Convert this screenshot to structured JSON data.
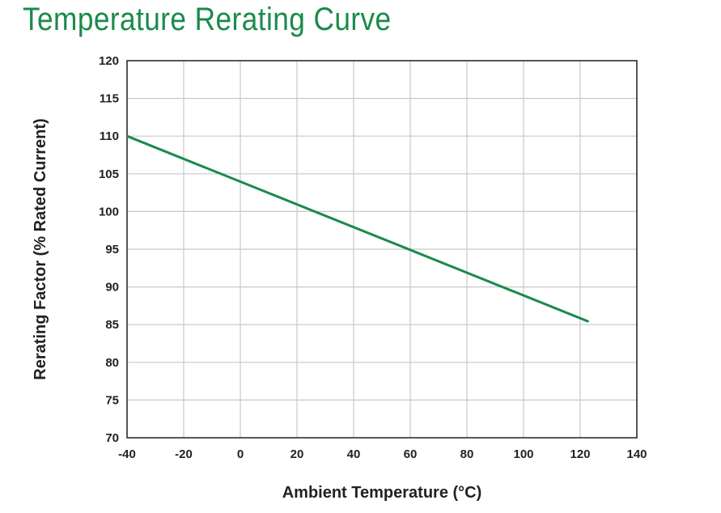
{
  "chart_data": {
    "type": "line",
    "title": "Temperature Rerating Curve",
    "xlabel": "Ambient Temperature (°C)",
    "ylabel": "Rerating Factor (% Rated Current)",
    "xlim": [
      -40,
      140
    ],
    "ylim": [
      70,
      120
    ],
    "x_ticks": [
      -40,
      -20,
      0,
      20,
      40,
      60,
      80,
      100,
      120,
      140
    ],
    "y_ticks": [
      70,
      75,
      80,
      85,
      90,
      95,
      100,
      105,
      110,
      115,
      120
    ],
    "grid": true,
    "legend": "none",
    "series": [
      {
        "color": "#1a8a4a",
        "x": [
          -40,
          123
        ],
        "y": [
          110,
          85.4
        ]
      }
    ]
  }
}
